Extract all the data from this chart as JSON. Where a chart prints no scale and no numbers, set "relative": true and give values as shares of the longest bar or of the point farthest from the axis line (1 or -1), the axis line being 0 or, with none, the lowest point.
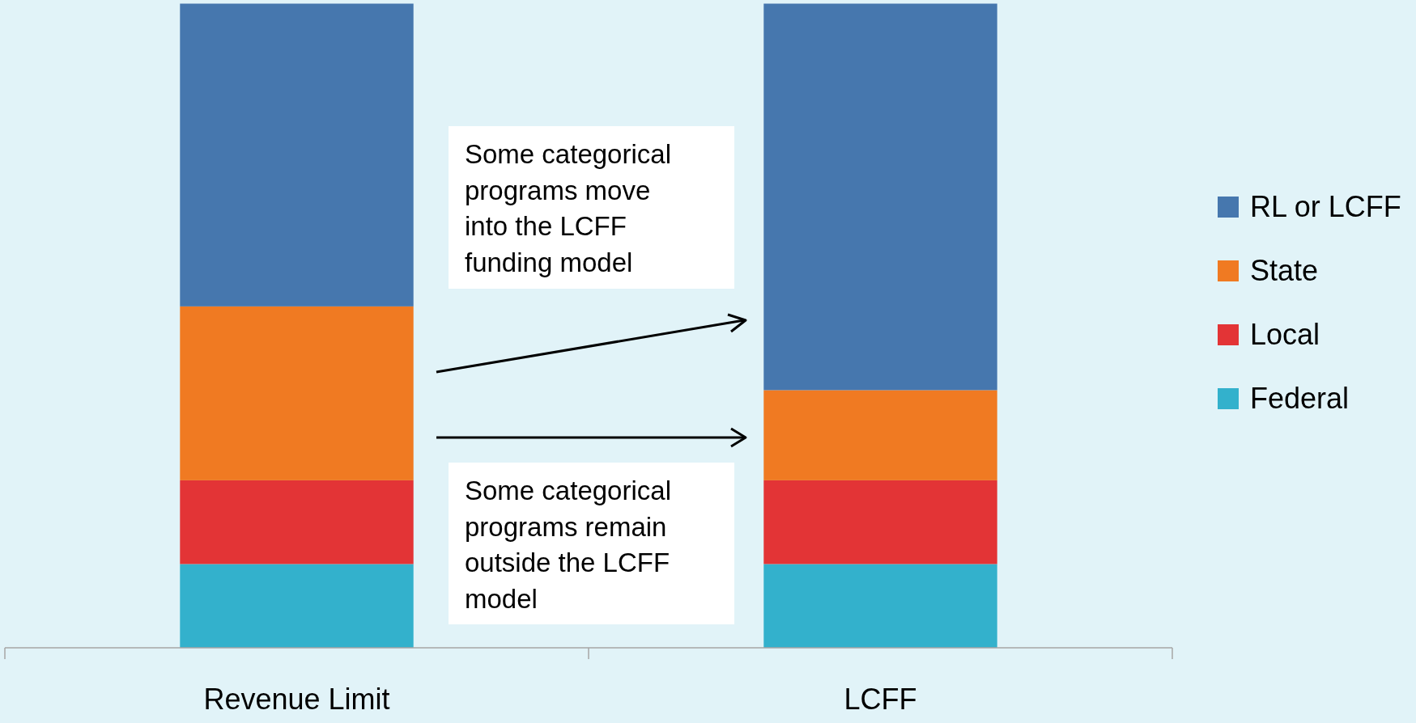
{
  "chart_data": {
    "type": "bar",
    "relative": true,
    "stacked": true,
    "categories": [
      "Revenue Limit",
      "LCFF"
    ],
    "series": [
      {
        "name": "Federal",
        "color": "#33b1cc",
        "values": [
          0.13,
          0.13
        ]
      },
      {
        "name": "Local",
        "color": "#e33436",
        "values": [
          0.13,
          0.13
        ]
      },
      {
        "name": "State",
        "color": "#f07a22",
        "values": [
          0.27,
          0.14
        ]
      },
      {
        "name": "RL or LCFF",
        "color": "#4677ae",
        "values": [
          0.47,
          0.6
        ]
      }
    ],
    "legend": "right",
    "annotations": [
      "Some categorical programs move into the LCFF funding model",
      "Some categorical programs remain outside the LCFF model"
    ]
  }
}
